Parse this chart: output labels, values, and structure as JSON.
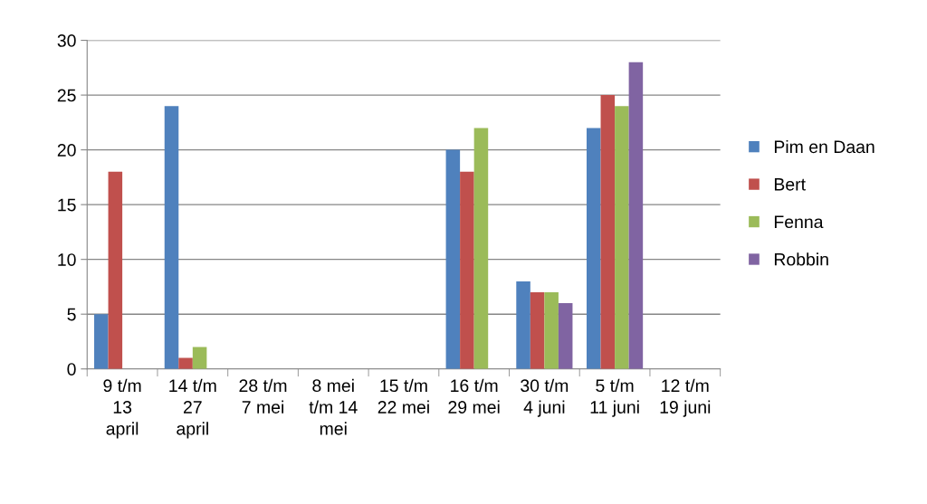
{
  "chart_data": {
    "type": "bar",
    "categories": [
      "9 t/m\n13\napril",
      "14 t/m\n27\napril",
      "28 t/m\n7 mei",
      "8 mei\nt/m 14\nmei",
      "15 t/m\n22 mei",
      "16 t/m\n29 mei",
      "30 t/m\n4 juni",
      "5 t/m\n11 juni",
      "12 t/m\n19 juni"
    ],
    "series": [
      {
        "name": "Pim en Daan",
        "color": "#4f81bd",
        "values": [
          5,
          24,
          null,
          null,
          null,
          20,
          8,
          22,
          null
        ]
      },
      {
        "name": "Bert",
        "color": "#c0504d",
        "values": [
          18,
          1,
          null,
          null,
          null,
          18,
          7,
          25,
          null
        ]
      },
      {
        "name": "Fenna",
        "color": "#9bbb59",
        "values": [
          null,
          2,
          null,
          null,
          null,
          22,
          7,
          24,
          null
        ]
      },
      {
        "name": "Robbin",
        "color": "#8064a2",
        "values": [
          null,
          null,
          null,
          null,
          null,
          null,
          6,
          28,
          null
        ]
      }
    ],
    "ylim": [
      0,
      30
    ],
    "yticks": [
      0,
      5,
      10,
      15,
      20,
      25,
      30
    ],
    "grid": "y",
    "legend": "right"
  }
}
